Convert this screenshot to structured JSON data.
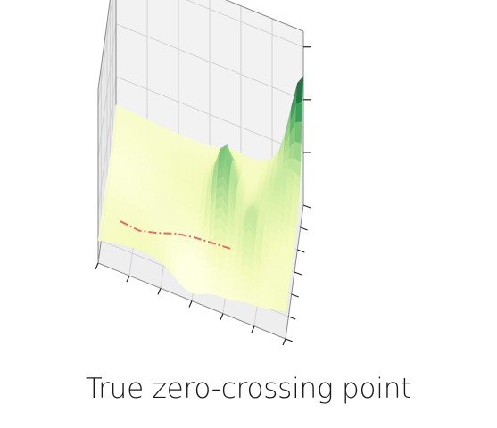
{
  "caption": "True zero-crossing point",
  "chart_data": {
    "type": "surface3d",
    "title": "",
    "xlabel": "",
    "ylabel": "",
    "zlabel": "",
    "xlim": [
      0,
      1
    ],
    "ylim": [
      0,
      1
    ],
    "zlim": [
      0,
      1
    ],
    "grid": true,
    "colormap": "YlGn",
    "panes": [
      "back",
      "left",
      "floor"
    ],
    "x_ticks": 6,
    "y_ticks": 6,
    "z_ticks": 3,
    "surface_shape": "mostly flat low plateau; a narrow dark-green ridge near the middle-right; a second hump; rising to the highest peak at the far right corner",
    "path_series": {
      "style": "dash-dot",
      "color": "#e36b6b",
      "points": [
        [
          0.1,
          0.2,
          0.13
        ],
        [
          0.2,
          0.2,
          0.12
        ],
        [
          0.3,
          0.2,
          0.15
        ],
        [
          0.4,
          0.2,
          0.19
        ],
        [
          0.5,
          0.2,
          0.21
        ],
        [
          0.6,
          0.2,
          0.22
        ],
        [
          0.7,
          0.2,
          0.23
        ]
      ]
    }
  }
}
